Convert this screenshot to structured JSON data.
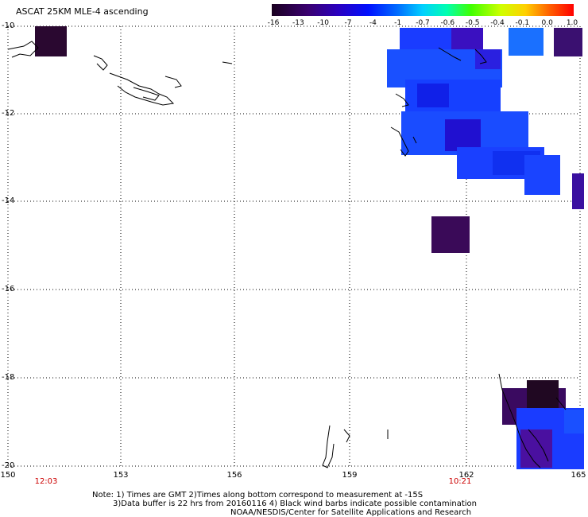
{
  "title": "ASCAT 25KM MLE-4 ascending",
  "colorbar": {
    "labels": [
      "-16",
      "-13",
      "-10",
      "-7",
      "-4",
      "-1",
      "-0.7",
      "-0.6",
      "-0.5",
      "-0.4",
      "-0.1",
      "0.0",
      "1.0"
    ],
    "colors": [
      "#2a0033",
      "#3b0080",
      "#2a00cc",
      "#0000ff",
      "#0050ff",
      "#00a0ff",
      "#00e0ff",
      "#00ff80",
      "#40ff00",
      "#c0ff00",
      "#ffe000",
      "#ff8000",
      "#ff0000"
    ]
  },
  "axes": {
    "lat_labels": [
      "-10",
      "-12",
      "-14",
      "-16",
      "-18",
      "-20"
    ],
    "lon_labels": [
      "150",
      "153",
      "156",
      "159",
      "162",
      "165"
    ],
    "time_labels": [
      "12:03",
      "10:21"
    ]
  },
  "notes": {
    "line1": "Note: 1) Times are GMT 2)Times along bottom correspond to measurement at -15S",
    "line2": "3)Data buffer is 22 hrs from 20160116 4) Black wind barbs indicate possible contamination",
    "line3": "NOAA/NESDIS/Center for Satellite Applications and Research"
  }
}
